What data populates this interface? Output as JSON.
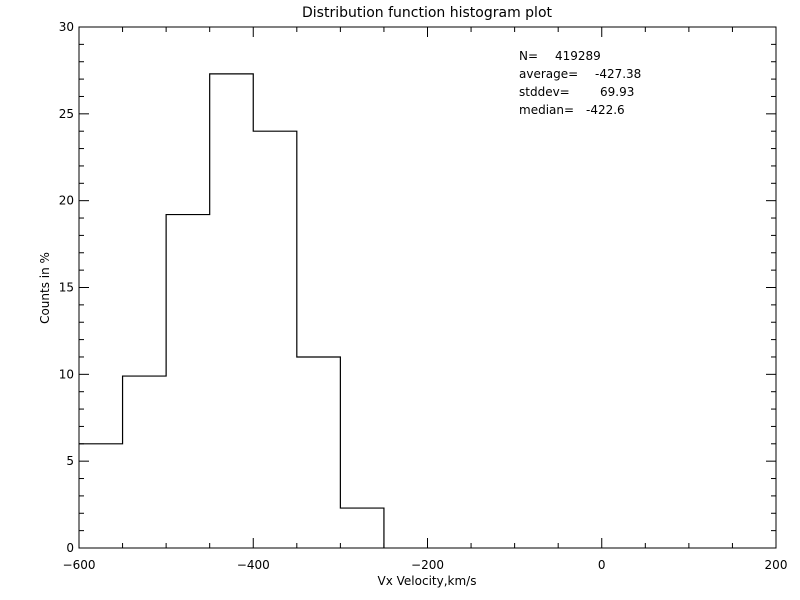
{
  "chart_data": {
    "type": "bar",
    "title": "Distribution function histogram plot",
    "xlabel": "Vx Velocity,km/s",
    "ylabel": "Counts in %",
    "xlim": [
      -600,
      200
    ],
    "ylim": [
      0,
      30
    ],
    "x_ticks": [
      -600,
      -400,
      -200,
      0,
      200
    ],
    "y_ticks": [
      0,
      5,
      10,
      15,
      20,
      25,
      30
    ],
    "bin_width": 50,
    "bins": [
      {
        "x0": -600,
        "x1": -550,
        "value": 6.0
      },
      {
        "x0": -550,
        "x1": -500,
        "value": 9.9
      },
      {
        "x0": -500,
        "x1": -450,
        "value": 19.2
      },
      {
        "x0": -450,
        "x1": -400,
        "value": 27.3
      },
      {
        "x0": -400,
        "x1": -350,
        "value": 24.0
      },
      {
        "x0": -350,
        "x1": -300,
        "value": 11.0
      },
      {
        "x0": -300,
        "x1": -250,
        "value": 2.3
      }
    ],
    "grid": false,
    "annotations": [
      {
        "label": "N=",
        "value": "419289"
      },
      {
        "label": "average=",
        "value": "-427.38"
      },
      {
        "label": "stddev=",
        "value": "69.93"
      },
      {
        "label": "median=",
        "value": "-422.6"
      }
    ],
    "annotation_placement": "top-right"
  }
}
